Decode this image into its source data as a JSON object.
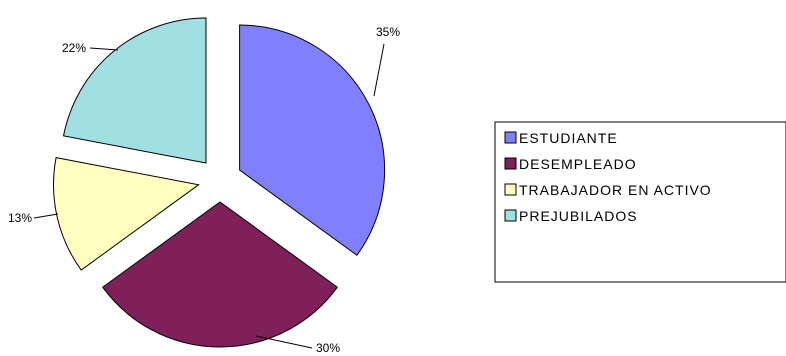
{
  "chart_data": {
    "type": "pie",
    "title": "",
    "exploded": true,
    "legend_position": "right",
    "slices": [
      {
        "label": "ESTUDIANTE",
        "value": 35,
        "display": "35%",
        "color": "#8080ff"
      },
      {
        "label": "DESEMPLEADO",
        "value": 30,
        "display": "30%",
        "color": "#80205a"
      },
      {
        "label": "TRABAJADOR EN ACTIVO",
        "value": 13,
        "display": "13%",
        "color": "#ffffc0"
      },
      {
        "label": "PREJUBILADOS",
        "value": 22,
        "display": "22%",
        "color": "#a0e0e0"
      }
    ]
  }
}
